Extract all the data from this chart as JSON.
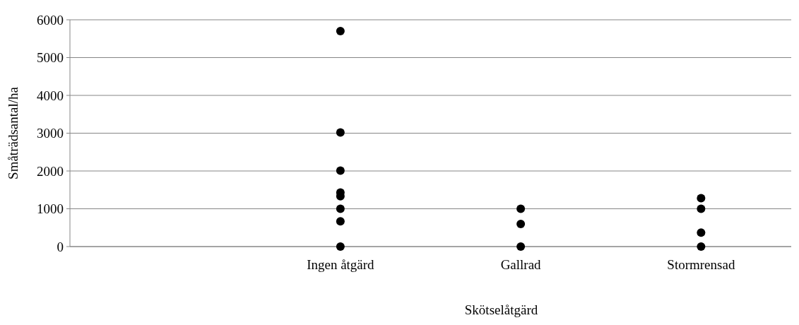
{
  "chart_data": {
    "type": "scatter",
    "xlabel": "Skötselåtgärd",
    "ylabel": "Småträdsantal/ha",
    "categories": [
      null,
      "Ingen åtgärd",
      "Gallrad",
      "Stormrensad"
    ],
    "series": [
      {
        "color": "#000000",
        "x": [
          "Ingen åtgärd",
          "Ingen åtgärd",
          "Ingen åtgärd",
          "Ingen åtgärd",
          "Ingen åtgärd",
          "Ingen åtgärd",
          "Ingen åtgärd",
          "Ingen åtgärd",
          "Gallrad",
          "Gallrad",
          "Gallrad",
          "Stormrensad",
          "Stormrensad",
          "Stormrensad",
          "Stormrensad"
        ],
        "values": [
          5700,
          3020,
          2010,
          1430,
          1330,
          1000,
          670,
          0,
          1000,
          600,
          0,
          1280,
          1000,
          370,
          0
        ]
      }
    ],
    "ylim": [
      0,
      6000
    ],
    "yticks": [
      0,
      1000,
      2000,
      3000,
      4000,
      5000,
      6000
    ],
    "grid": "y",
    "marker": "circle"
  }
}
